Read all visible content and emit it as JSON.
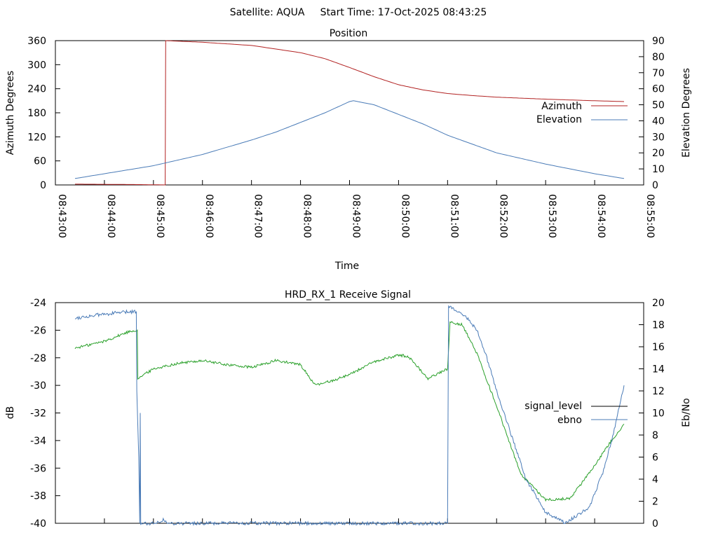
{
  "page_title": "Satellite: AQUA     Start Time: 17-Oct-2025 08:43:25",
  "chart_data": [
    {
      "type": "line",
      "title": "Position",
      "xlabel": "Time",
      "ylabel": "Azimuth Degrees",
      "y2label": "Elevation Degrees",
      "x_ticks": [
        "08:43:00",
        "08:44:00",
        "08:45:00",
        "08:46:00",
        "08:47:00",
        "08:48:00",
        "08:49:00",
        "08:50:00",
        "08:51:00",
        "08:52:00",
        "08:53:00",
        "08:54:00",
        "08:55:00"
      ],
      "xlim_minutes": [
        0,
        12
      ],
      "ylim": [
        0,
        360
      ],
      "y_ticks": [
        0,
        60,
        120,
        180,
        240,
        300,
        360
      ],
      "y2lim": [
        0,
        90
      ],
      "y2_ticks": [
        0,
        10,
        20,
        30,
        40,
        50,
        60,
        70,
        80,
        90
      ],
      "legend_position": "right",
      "series": [
        {
          "name": "Azimuth",
          "axis": "y",
          "color": "#b22222",
          "points": [
            [
              0.4,
              2
            ],
            [
              1.0,
              1.5
            ],
            [
              1.6,
              1
            ],
            [
              2.1,
              0.3
            ],
            [
              2.24,
              0
            ],
            [
              2.25,
              360
            ],
            [
              3.0,
              356
            ],
            [
              4.0,
              348
            ],
            [
              5.0,
              330
            ],
            [
              5.5,
              315
            ],
            [
              6.0,
              293
            ],
            [
              6.5,
              270
            ],
            [
              7.0,
              250
            ],
            [
              7.5,
              237
            ],
            [
              8.0,
              228
            ],
            [
              8.5,
              223
            ],
            [
              9.0,
              219
            ],
            [
              10.0,
              214
            ],
            [
              11.0,
              210
            ],
            [
              11.6,
              208
            ]
          ]
        },
        {
          "name": "Elevation",
          "axis": "y2",
          "color": "#4a7bb7",
          "points": [
            [
              0.4,
              4
            ],
            [
              1.0,
              7
            ],
            [
              2.0,
              12
            ],
            [
              3.0,
              19
            ],
            [
              4.0,
              28
            ],
            [
              4.5,
              33
            ],
            [
              5.0,
              39
            ],
            [
              5.5,
              45
            ],
            [
              6.0,
              52
            ],
            [
              6.08,
              52.5
            ],
            [
              6.5,
              50
            ],
            [
              7.0,
              44
            ],
            [
              7.5,
              38
            ],
            [
              8.0,
              31
            ],
            [
              9.0,
              20
            ],
            [
              10.0,
              13
            ],
            [
              11.0,
              7
            ],
            [
              11.6,
              4
            ]
          ]
        }
      ]
    },
    {
      "type": "line",
      "title": "HRD_RX_1 Receive Signal",
      "xlabel": "",
      "ylabel": "dB",
      "y2label": "Eb/No",
      "xlim_minutes": [
        0,
        12
      ],
      "ylim": [
        -40,
        -24
      ],
      "y_ticks": [
        -40,
        -38,
        -36,
        -34,
        -32,
        -30,
        -28,
        -26,
        -24
      ],
      "y2lim": [
        0,
        20
      ],
      "y2_ticks": [
        0,
        2,
        4,
        6,
        8,
        10,
        12,
        14,
        16,
        18,
        20
      ],
      "legend_position": "right",
      "series": [
        {
          "name": "signal_level",
          "axis": "y",
          "legend_color": "#000000",
          "color": "#2aa02a",
          "points": [
            [
              0.4,
              -27.3
            ],
            [
              1.0,
              -26.8
            ],
            [
              1.5,
              -26.1
            ],
            [
              1.67,
              -26.0
            ],
            [
              1.68,
              -29.5
            ],
            [
              2.0,
              -28.8
            ],
            [
              2.5,
              -28.4
            ],
            [
              3.0,
              -28.2
            ],
            [
              3.5,
              -28.5
            ],
            [
              4.0,
              -28.7
            ],
            [
              4.5,
              -28.2
            ],
            [
              5.0,
              -28.5
            ],
            [
              5.3,
              -30.0
            ],
            [
              5.7,
              -29.6
            ],
            [
              6.0,
              -29.2
            ],
            [
              6.5,
              -28.3
            ],
            [
              7.0,
              -27.8
            ],
            [
              7.2,
              -27.9
            ],
            [
              7.6,
              -29.5
            ],
            [
              8.0,
              -28.8
            ],
            [
              8.05,
              -25.4
            ],
            [
              8.3,
              -25.6
            ],
            [
              8.6,
              -27.7
            ],
            [
              9.0,
              -31.5
            ],
            [
              9.5,
              -36.5
            ],
            [
              10.0,
              -38.3
            ],
            [
              10.5,
              -38.2
            ],
            [
              11.0,
              -35.8
            ],
            [
              11.3,
              -34.2
            ],
            [
              11.6,
              -32.8
            ]
          ]
        },
        {
          "name": "ebno",
          "axis": "y2",
          "color": "#4a7bb7",
          "points": [
            [
              0.4,
              18.6
            ],
            [
              0.9,
              18.9
            ],
            [
              1.3,
              19.1
            ],
            [
              1.65,
              19.2
            ],
            [
              1.66,
              12.0
            ],
            [
              1.7,
              6.0
            ],
            [
              1.72,
              0.0
            ],
            [
              1.73,
              10.0
            ],
            [
              1.74,
              0.0
            ],
            [
              2.0,
              0.0
            ],
            [
              2.2,
              0.3
            ],
            [
              2.3,
              0.0
            ],
            [
              8.0,
              0.0
            ],
            [
              8.02,
              19.7
            ],
            [
              8.2,
              19.3
            ],
            [
              8.4,
              18.6
            ],
            [
              8.6,
              17.5
            ],
            [
              8.8,
              15.0
            ],
            [
              9.0,
              12.0
            ],
            [
              9.3,
              8.0
            ],
            [
              9.6,
              4.0
            ],
            [
              10.0,
              1.0
            ],
            [
              10.4,
              0.0
            ],
            [
              10.9,
              1.5
            ],
            [
              11.2,
              5.0
            ],
            [
              11.4,
              8.5
            ],
            [
              11.6,
              12.5
            ]
          ]
        }
      ]
    }
  ]
}
